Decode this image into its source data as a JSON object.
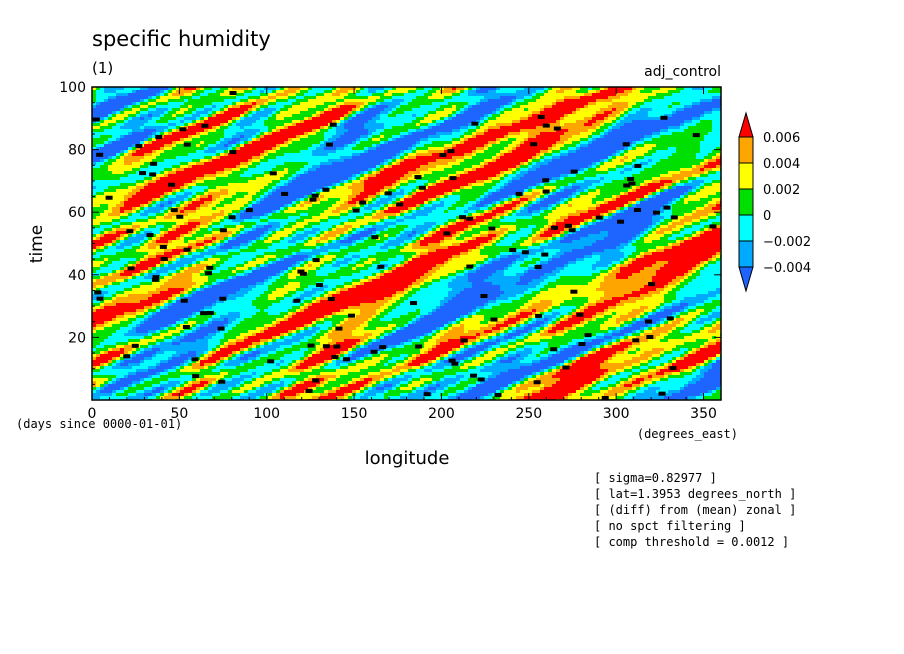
{
  "chart_data": {
    "type": "heatmap",
    "title": "specific humidity",
    "subtitle": "(1)",
    "experiment": "adj_control",
    "xlabel": "longitude",
    "x_units": "(degrees_east)",
    "ylabel": "time",
    "y_units": "(days since 0000-01-01)",
    "xlim": [
      0,
      360
    ],
    "ylim": [
      0,
      100
    ],
    "x_ticks": [
      "0",
      "50",
      "100",
      "150",
      "200",
      "250",
      "300",
      "350"
    ],
    "y_ticks": [
      "20",
      "40",
      "60",
      "80",
      "100"
    ],
    "colorbar": {
      "levels": [
        "0.006",
        "0.004",
        "0.002",
        "0",
        "−0.002",
        "−0.004"
      ],
      "colors": [
        "#ff0000",
        "#ffa500",
        "#ffff00",
        "#00e000",
        "#00ffff",
        "#00aaff",
        "#1e64ff"
      ]
    },
    "notes": [
      "[ sigma=0.82977 ]",
      "[ lat=1.3953 degrees_north ]",
      "[ (diff) from (mean) zonal ]",
      "[ no spct filtering ]",
      "[ comp threshold = 0.0012 ]"
    ]
  }
}
